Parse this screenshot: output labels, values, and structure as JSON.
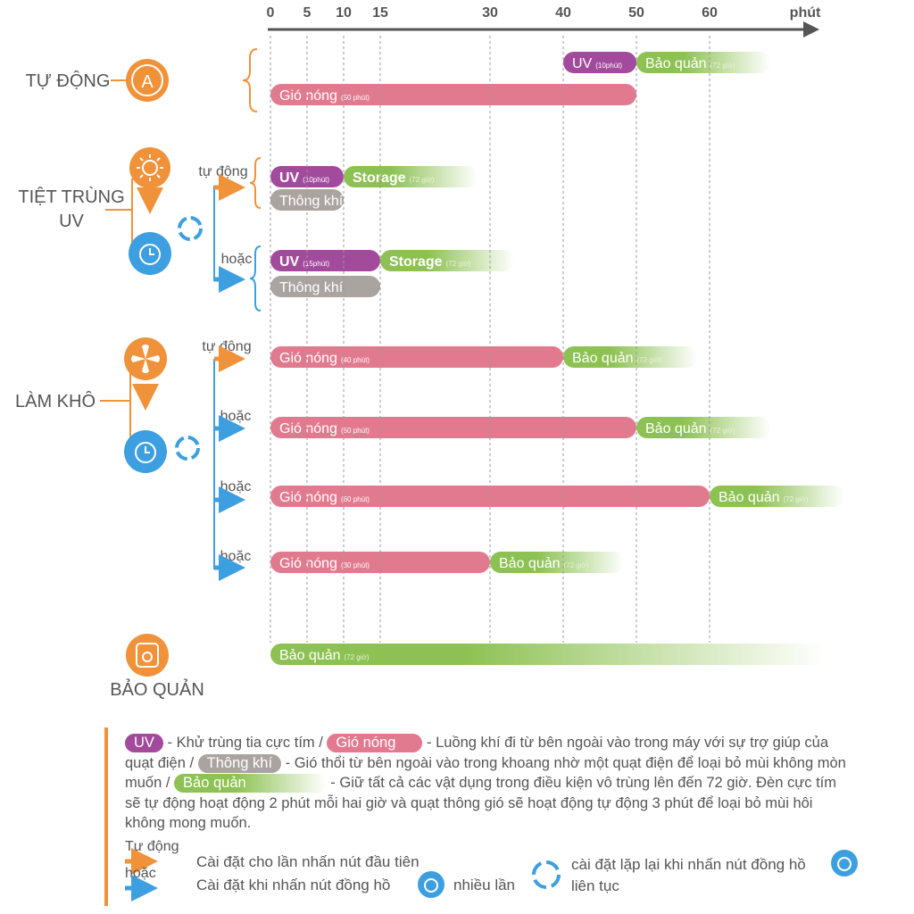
{
  "axis": {
    "ticks": [
      0,
      5,
      10,
      15,
      30,
      40,
      50,
      60
    ],
    "unit": "phút"
  },
  "modes": {
    "auto": "TỰ ĐỘNG",
    "uv": [
      "TIỆT TRÙNG",
      "UV"
    ],
    "dry": "LÀM KHÔ",
    "store": "BẢO QUẢN"
  },
  "triggers": [
    "tự động",
    "hoặc",
    "tự động",
    "hoặc",
    "hoặc",
    "hoặc"
  ],
  "colors": {
    "uv": "#a24a9c",
    "hot": "#e27a8f",
    "vent": "#aaa4a1",
    "store": "#8dc153"
  },
  "bars": [
    {
      "label": "UV",
      "note": "(10phút)",
      "start": 40,
      "end": 50,
      "kind": "uv"
    },
    {
      "label": "Bảo quản",
      "note": "(72 giờ)",
      "start": 50,
      "kind": "store"
    },
    {
      "label": "Gió nóng",
      "note": "(50 phút)",
      "start": 0,
      "end": 50,
      "kind": "hot"
    },
    {
      "label": "UV",
      "note": "(10phút)",
      "start": 0,
      "end": 10,
      "kind": "uv"
    },
    {
      "label": "Storage",
      "note": "(72 giờ)",
      "start": 10,
      "kind": "store"
    },
    {
      "label": "Thông khí",
      "start": 0,
      "end": 10,
      "kind": "vent"
    },
    {
      "label": "UV",
      "note": "(15phút)",
      "start": 0,
      "end": 15,
      "kind": "uv"
    },
    {
      "label": "Storage",
      "note": "(72 giờ)",
      "start": 15,
      "kind": "store"
    },
    {
      "label": "Thông khí",
      "start": 0,
      "end": 15,
      "kind": "vent"
    },
    {
      "label": "Gió nóng",
      "note": "(40 phút)",
      "start": 0,
      "end": 40,
      "kind": "hot"
    },
    {
      "label": "Bảo quản",
      "note": "(72 giờ)",
      "start": 40,
      "kind": "store"
    },
    {
      "label": "Gió nóng",
      "note": "(50 phút)",
      "start": 0,
      "end": 50,
      "kind": "hot"
    },
    {
      "label": "Bảo quản",
      "note": "(72 giờ)",
      "start": 50,
      "kind": "store"
    },
    {
      "label": "Gió nóng",
      "note": "(60 phút)",
      "start": 0,
      "end": 60,
      "kind": "hot"
    },
    {
      "label": "Bảo quản",
      "note": "(72 giờ)",
      "start": 60,
      "kind": "store"
    },
    {
      "label": "Gió nóng",
      "note": "(30 phút)",
      "start": 0,
      "end": 30,
      "kind": "hot"
    },
    {
      "label": "Bảo quản",
      "note": "(72 giờ)",
      "start": 30,
      "kind": "store"
    },
    {
      "label": "Bảo quản",
      "note": "(72 giờ)",
      "start": 0,
      "kind": "store"
    }
  ],
  "legend": {
    "uv": "UV",
    "uv_text": "- Khử trùng tia cực tím /",
    "hot": "Gió nóng",
    "hot_text": "- Luồng khí đi từ bên ngoài vào trong máy với sự trợ giúp của quạt điện /",
    "vent": "Thông khí",
    "vent_text": "- Gió thổi từ bên ngoài vào trong khoang nhờ một quạt điện để loại bỏ mùi không mòn muốn /",
    "store": "Bảo quản",
    "store_text": "- Giữ tất cả các vật dụng trong điều kiện vô trùng lên đến 72 giờ. Đèn cực tím sẽ tự động hoạt động 2 phút mỗi hai giờ và quạt thông gió sẽ hoạt động tự động 3 phút để loại bỏ mùi hôi không mong muốn.",
    "auto": "Tự động",
    "or": "hoặc",
    "first_press": "Cài đặt cho lần nhấn nút đầu tiên",
    "clock_press": "Cài đặt khi nhấn nút đồng hồ",
    "many": "nhiều lần",
    "repeat": "cài đặt lặp lại khi nhấn nút đồng hồ",
    "continuous": "liên tục"
  }
}
